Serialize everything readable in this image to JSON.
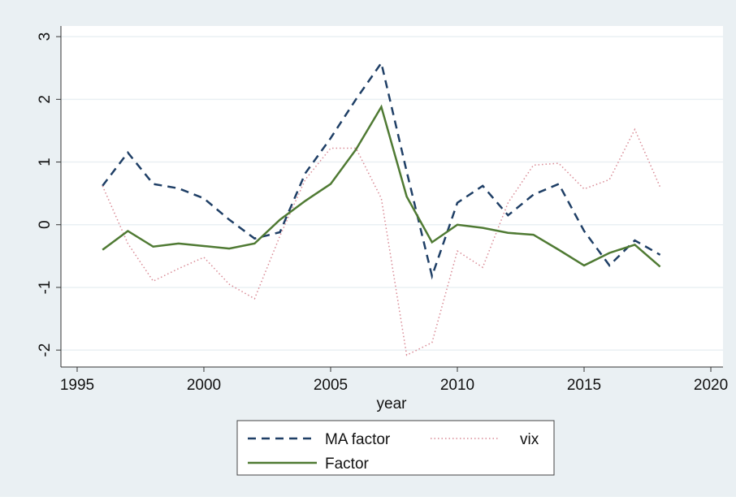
{
  "chart_data": {
    "type": "line",
    "x_label": "year",
    "x": [
      1996,
      1997,
      1998,
      1999,
      2000,
      2001,
      2002,
      2003,
      2004,
      2005,
      2006,
      2007,
      2008,
      2009,
      2010,
      2011,
      2012,
      2013,
      2014,
      2015,
      2016,
      2017,
      2018
    ],
    "series": [
      {
        "name": "MA factor",
        "color": "#1f3f66",
        "style": "dashed",
        "values": [
          0.62,
          1.15,
          0.65,
          0.58,
          0.42,
          0.08,
          -0.22,
          -0.12,
          0.82,
          1.38,
          2.0,
          2.58,
          0.85,
          -0.82,
          0.35,
          0.62,
          0.15,
          0.48,
          0.65,
          -0.1,
          -0.65,
          -0.25,
          -0.48
        ]
      },
      {
        "name": "vix",
        "color": "#d98a95",
        "style": "dotted",
        "values": [
          0.62,
          -0.3,
          -0.9,
          -0.7,
          -0.52,
          -0.95,
          -1.18,
          -0.18,
          0.72,
          1.22,
          1.22,
          0.42,
          -2.08,
          -1.88,
          -0.42,
          -0.68,
          0.35,
          0.95,
          0.98,
          0.57,
          0.72,
          1.52,
          0.6
        ]
      },
      {
        "name": "Factor",
        "color": "#4f7a33",
        "style": "solid",
        "values": [
          -0.4,
          -0.1,
          -0.35,
          -0.3,
          -0.34,
          -0.38,
          -0.3,
          0.08,
          0.38,
          0.65,
          1.2,
          1.88,
          0.45,
          -0.28,
          0.0,
          -0.05,
          -0.13,
          -0.16,
          -0.4,
          -0.65,
          -0.45,
          -0.32,
          -0.67
        ]
      }
    ],
    "xlim": [
      1994.36,
      2020.48
    ],
    "xticks": [
      1995,
      2000,
      2005,
      2010,
      2015,
      2020
    ],
    "ylim": [
      -2.27,
      3.17
    ],
    "yticks": [
      -2,
      -1,
      0,
      1,
      2,
      3
    ],
    "grid": true
  }
}
